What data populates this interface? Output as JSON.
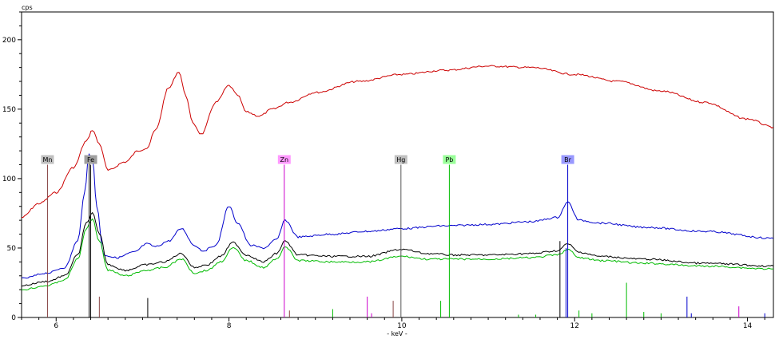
{
  "chart_data": {
    "type": "line",
    "ylabel": "cps",
    "xlabel": "- keV -",
    "xlim": [
      5.6,
      14.3
    ],
    "ylim": [
      0,
      220
    ],
    "x_ticks": [
      6,
      8,
      10,
      12,
      14
    ],
    "y_ticks": [
      0,
      50,
      100,
      150,
      200
    ],
    "grid": false,
    "colors": {
      "red": "#cc0000",
      "blue": "#0000cc",
      "black": "#000000",
      "green": "#00bb00"
    },
    "series": [
      {
        "color": "red",
        "x": [
          5.6,
          5.8,
          6.0,
          6.2,
          6.35,
          6.42,
          6.5,
          6.6,
          6.8,
          6.95,
          7.05,
          7.15,
          7.3,
          7.42,
          7.5,
          7.58,
          7.68,
          7.85,
          8.0,
          8.1,
          8.2,
          8.35,
          8.5,
          8.7,
          9.0,
          9.5,
          10.0,
          10.5,
          11.0,
          11.5,
          12.0,
          12.5,
          13.0,
          13.5,
          14.0,
          14.3
        ],
        "y": [
          72,
          82,
          90,
          108,
          127,
          135,
          125,
          106,
          112,
          120,
          122,
          135,
          165,
          177,
          160,
          140,
          132,
          155,
          167,
          160,
          148,
          145,
          150,
          155,
          162,
          170,
          175,
          178,
          181,
          180,
          175,
          170,
          163,
          155,
          143,
          137
        ]
      },
      {
        "color": "blue",
        "x": [
          5.6,
          5.9,
          6.1,
          6.25,
          6.33,
          6.38,
          6.42,
          6.47,
          6.55,
          6.7,
          6.9,
          7.05,
          7.15,
          7.3,
          7.45,
          7.6,
          7.7,
          7.85,
          8.0,
          8.1,
          8.25,
          8.4,
          8.55,
          8.65,
          8.8,
          9.2,
          9.6,
          10.0,
          10.5,
          11.0,
          11.5,
          11.8,
          11.92,
          12.05,
          12.3,
          12.8,
          13.5,
          14.3
        ],
        "y": [
          28,
          32,
          36,
          55,
          90,
          118,
          115,
          80,
          45,
          43,
          47,
          53,
          51,
          55,
          64,
          52,
          48,
          52,
          80,
          68,
          52,
          50,
          56,
          70,
          58,
          60,
          62,
          64,
          66,
          67,
          69,
          72,
          83,
          70,
          68,
          65,
          62,
          57
        ]
      },
      {
        "color": "black",
        "x": [
          5.6,
          5.9,
          6.1,
          6.25,
          6.35,
          6.42,
          6.5,
          6.6,
          6.8,
          7.05,
          7.25,
          7.45,
          7.6,
          7.75,
          7.9,
          8.05,
          8.2,
          8.4,
          8.55,
          8.65,
          8.8,
          9.2,
          9.6,
          10.0,
          10.3,
          10.6,
          11.0,
          11.5,
          11.8,
          11.92,
          12.05,
          12.3,
          12.8,
          13.5,
          14.3
        ],
        "y": [
          23,
          26,
          30,
          45,
          68,
          75,
          60,
          38,
          34,
          38,
          40,
          46,
          36,
          38,
          44,
          54,
          45,
          40,
          46,
          55,
          45,
          44,
          44,
          49,
          46,
          45,
          45,
          46,
          48,
          53,
          47,
          44,
          42,
          39,
          37
        ]
      },
      {
        "color": "green",
        "x": [
          5.6,
          5.9,
          6.1,
          6.25,
          6.35,
          6.42,
          6.5,
          6.6,
          6.8,
          7.05,
          7.25,
          7.45,
          7.6,
          7.75,
          7.9,
          8.05,
          8.2,
          8.4,
          8.55,
          8.65,
          8.8,
          9.2,
          9.6,
          10.0,
          10.3,
          10.6,
          11.0,
          11.5,
          11.8,
          11.92,
          12.05,
          12.3,
          12.8,
          13.5,
          14.3
        ],
        "y": [
          20,
          23,
          27,
          42,
          64,
          71,
          55,
          34,
          30,
          34,
          36,
          42,
          32,
          34,
          40,
          50,
          41,
          36,
          42,
          51,
          41,
          40,
          40,
          44,
          42,
          42,
          42,
          43,
          45,
          49,
          43,
          41,
          39,
          37,
          35
        ]
      }
    ],
    "element_markers": [
      {
        "label": "Mn",
        "x": 5.9,
        "color": "#c0c0c0",
        "line": "#884444"
      },
      {
        "label": "Fe",
        "x": 6.4,
        "color": "#a0a0a0",
        "line": "#000000"
      },
      {
        "label": "Zn",
        "x": 8.64,
        "color": "#ff99ff",
        "line": "#cc00cc"
      },
      {
        "label": "Hg",
        "x": 9.99,
        "color": "#c0c0c0",
        "line": "#555555"
      },
      {
        "label": "Pb",
        "x": 10.55,
        "color": "#99ff99",
        "line": "#00bb00"
      },
      {
        "label": "Br",
        "x": 11.92,
        "color": "#9999ff",
        "line": "#0000cc"
      }
    ],
    "marker_level": 110,
    "small_peaks": [
      {
        "x": 6.5,
        "y": 15,
        "color": "#884444"
      },
      {
        "x": 7.06,
        "y": 14,
        "color": "#000000"
      },
      {
        "x": 8.7,
        "y": 5,
        "color": "#884444"
      },
      {
        "x": 9.2,
        "y": 6,
        "color": "#00bb00"
      },
      {
        "x": 9.6,
        "y": 15,
        "color": "#cc00cc"
      },
      {
        "x": 9.65,
        "y": 3,
        "color": "#cc00cc"
      },
      {
        "x": 9.9,
        "y": 12,
        "color": "#884444"
      },
      {
        "x": 10.45,
        "y": 12,
        "color": "#00bb00"
      },
      {
        "x": 11.35,
        "y": 2,
        "color": "#00bb00"
      },
      {
        "x": 11.55,
        "y": 2,
        "color": "#00bb00"
      },
      {
        "x": 11.83,
        "y": 55,
        "color": "#000000"
      },
      {
        "x": 11.9,
        "y": 50,
        "color": "#0000cc"
      },
      {
        "x": 12.05,
        "y": 5,
        "color": "#00bb00"
      },
      {
        "x": 12.2,
        "y": 3,
        "color": "#00bb00"
      },
      {
        "x": 12.6,
        "y": 25,
        "color": "#00bb00"
      },
      {
        "x": 12.8,
        "y": 4,
        "color": "#00bb00"
      },
      {
        "x": 13.0,
        "y": 3,
        "color": "#00bb00"
      },
      {
        "x": 13.3,
        "y": 15,
        "color": "#0000cc"
      },
      {
        "x": 13.35,
        "y": 3,
        "color": "#0000cc"
      },
      {
        "x": 13.9,
        "y": 8,
        "color": "#cc00cc"
      },
      {
        "x": 14.2,
        "y": 3,
        "color": "#0000cc"
      }
    ]
  }
}
